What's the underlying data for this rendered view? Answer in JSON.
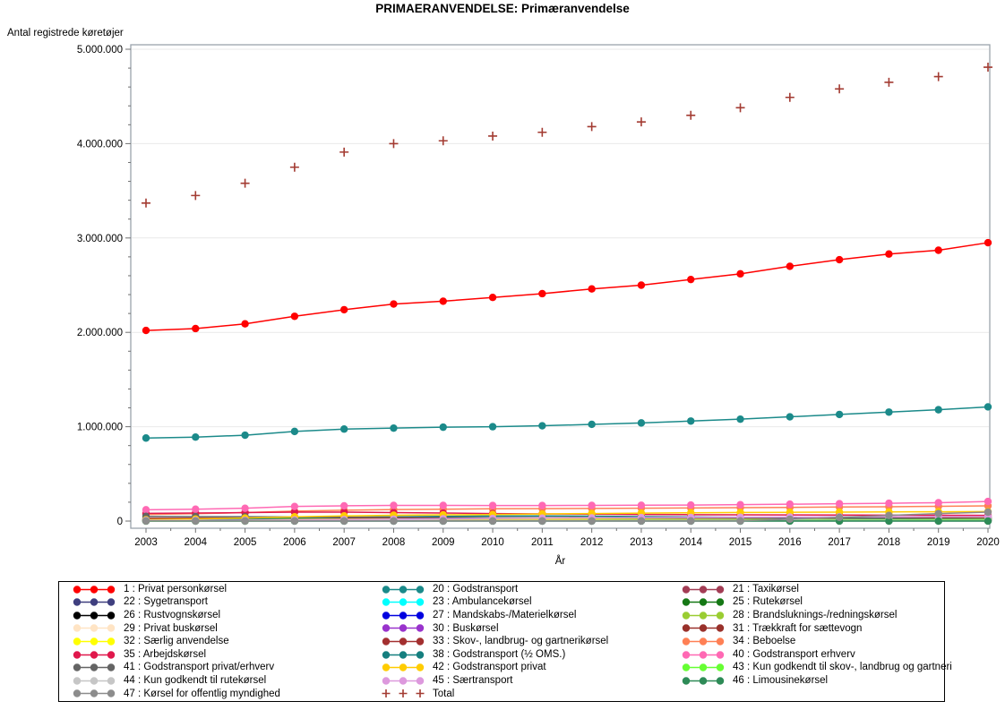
{
  "window": {
    "background": "#ffffff"
  },
  "title": "PRIMAERANVENDELSE: Primæranvendelse",
  "y_axis_label": "Antal registrede køretøjer",
  "x_axis_label": "År",
  "colors": {
    "frame": "#9aa3ac",
    "gridline": "#e9e9e9",
    "tick": "#707070",
    "legend_border": "#000000"
  },
  "chart_data": {
    "type": "line",
    "title": "PRIMAERANVENDELSE: Primæranvendelse",
    "xlabel": "År",
    "ylabel": "Antal registrede køretøjer",
    "grid": true,
    "legend_position": "bottom",
    "ylim": [
      0,
      5000000
    ],
    "x": [
      2003,
      2004,
      2005,
      2006,
      2007,
      2008,
      2009,
      2010,
      2011,
      2012,
      2013,
      2014,
      2015,
      2016,
      2017,
      2018,
      2019,
      2020
    ],
    "x_tick_labels": [
      "2003",
      "2004",
      "2005",
      "2006",
      "2007",
      "2008",
      "2009",
      "2010",
      "2011",
      "2012",
      "2013",
      "2014",
      "2015",
      "2016",
      "2017",
      "2018",
      "2019",
      "2020"
    ],
    "y_ticks": {
      "values": [
        0,
        1000000,
        2000000,
        3000000,
        4000000,
        5000000
      ],
      "labels": [
        "0",
        "1.000.000",
        "2.000.000",
        "3.000.000",
        "4.000.000",
        "5.000.000"
      ]
    },
    "series": [
      {
        "id": "1",
        "label": "1 : Privat personkørsel",
        "color": "#ff0000",
        "marker": "dot",
        "values": [
          2020000,
          2040000,
          2090000,
          2170000,
          2240000,
          2300000,
          2330000,
          2370000,
          2410000,
          2460000,
          2500000,
          2560000,
          2620000,
          2700000,
          2770000,
          2830000,
          2870000,
          2950000
        ]
      },
      {
        "id": "20",
        "label": "20 : Godstransport",
        "color": "#1b8a8a",
        "marker": "dot",
        "values": [
          880000,
          890000,
          910000,
          950000,
          975000,
          985000,
          995000,
          1000000,
          1010000,
          1025000,
          1040000,
          1060000,
          1080000,
          1105000,
          1130000,
          1155000,
          1180000,
          1210000
        ]
      },
      {
        "id": "21",
        "label": "21 : Taxikørsel",
        "color": "#a33d55",
        "marker": "dot",
        "values": [
          7000,
          7000,
          7000,
          7000,
          7000,
          7000,
          6500,
          6500,
          6500,
          6500,
          6000,
          6000,
          6000,
          6000,
          6500,
          6500,
          6000,
          5500
        ]
      },
      {
        "id": "22",
        "label": "22 : Sygetransport",
        "color": "#3f3f7f",
        "marker": "dot",
        "values": [
          2500,
          2500,
          2500,
          2500,
          2500,
          2500,
          2500,
          2500,
          2500,
          2500,
          2500,
          2500,
          2500,
          2500,
          2500,
          2500,
          2500,
          2500
        ]
      },
      {
        "id": "23",
        "label": "23 : Ambulancekørsel",
        "color": "#00ffff",
        "marker": "dot",
        "values": [
          900,
          900,
          900,
          900,
          900,
          950,
          950,
          950,
          950,
          950,
          1000,
          1000,
          1000,
          1000,
          1050,
          1050,
          1100,
          1100
        ]
      },
      {
        "id": "25",
        "label": "25 : Rutekørsel",
        "color": "#157815",
        "marker": "dot",
        "values": [
          4500,
          4500,
          4400,
          4400,
          4300,
          4300,
          4200,
          4200,
          4100,
          4100,
          4000,
          4000,
          3900,
          3900,
          3800,
          3800,
          3700,
          3700
        ]
      },
      {
        "id": "26",
        "label": "26 : Rustvognskørsel",
        "color": "#000000",
        "marker": "dot",
        "values": [
          900,
          900,
          900,
          900,
          900,
          900,
          900,
          900,
          900,
          900,
          900,
          900,
          900,
          900,
          900,
          900,
          900,
          900
        ]
      },
      {
        "id": "27",
        "label": "27 : Mandskabs-/Materielkørsel",
        "color": "#0000e0",
        "marker": "dot",
        "values": [
          14000,
          15000,
          16000,
          18000,
          20000,
          22000,
          23000,
          24000,
          25000,
          26000,
          27000,
          28000,
          29000,
          30000,
          31000,
          32000,
          33000,
          34000
        ]
      },
      {
        "id": "28",
        "label": "28 : Brandsluknings-/redningskørsel",
        "color": "#9acd32",
        "marker": "dot",
        "values": [
          3000,
          3000,
          3000,
          3100,
          3100,
          3100,
          3200,
          3200,
          3200,
          3300,
          3300,
          3300,
          3400,
          3400,
          3400,
          3500,
          3500,
          3500
        ]
      },
      {
        "id": "29",
        "label": "29 : Privat buskørsel",
        "color": "#ffe4c4",
        "marker": "dot",
        "values": [
          1800,
          1800,
          1800,
          1800,
          1800,
          1800,
          1700,
          1700,
          1700,
          1700,
          1600,
          1600,
          1600,
          1600,
          1500,
          1500,
          1500,
          1500
        ]
      },
      {
        "id": "30",
        "label": "30 : Buskørsel",
        "color": "#9933cc",
        "marker": "dot",
        "values": [
          9500,
          9500,
          9600,
          9700,
          9800,
          9800,
          9700,
          9600,
          9500,
          9400,
          9300,
          9200,
          9100,
          9000,
          9000,
          8900,
          8900,
          8800
        ]
      },
      {
        "id": "31",
        "label": "31 : Trækkraft for sættevogn",
        "color": "#99312b",
        "marker": "dot",
        "values": [
          11000,
          11500,
          12000,
          13000,
          14000,
          14000,
          13000,
          12000,
          11500,
          11500,
          11500,
          12000,
          12500,
          13000,
          13500,
          14000,
          14000,
          14500
        ]
      },
      {
        "id": "32",
        "label": "32 : Særlig anvendelse",
        "color": "#ffff00",
        "marker": "dot",
        "values": [
          12000,
          14000,
          16000,
          18000,
          20000,
          21000,
          22000,
          22000,
          23000,
          23000,
          24000,
          24000,
          25000,
          26000,
          27000,
          28000,
          29000,
          30000
        ]
      },
      {
        "id": "33",
        "label": "33 : Skov-, landbrug- og gartnerikørsel",
        "color": "#a33030",
        "marker": "dot",
        "values": [
          30000,
          31000,
          32000,
          33000,
          34000,
          35000,
          35000,
          36000,
          36000,
          37000,
          37000,
          38000,
          38000,
          39000,
          40000,
          41000,
          42000,
          43000
        ]
      },
      {
        "id": "34",
        "label": "34 : Beboelse",
        "color": "#ff8055",
        "marker": "dot",
        "values": [
          70000,
          78000,
          90000,
          105000,
          115000,
          122000,
          126000,
          130000,
          132000,
          134000,
          136000,
          139000,
          142000,
          145000,
          149000,
          152000,
          156000,
          161000
        ]
      },
      {
        "id": "35",
        "label": "35 : Arbejdskørsel",
        "color": "#e0184c",
        "marker": "dot",
        "values": [
          82000,
          85000,
          90000,
          95000,
          95000,
          90000,
          85000,
          80000,
          76000,
          73000,
          70000,
          68000,
          66000,
          65000,
          64000,
          63000,
          62000,
          60000
        ]
      },
      {
        "id": "38",
        "label": "38 : Godstransport (½ OMS.)",
        "color": "#157f7f",
        "marker": "dot",
        "values": [
          10000,
          15000,
          22000,
          32000,
          40000,
          45000,
          50000,
          53000,
          54000,
          52000,
          48000,
          44000,
          40000,
          36000,
          32000,
          28000,
          25000,
          22000
        ]
      },
      {
        "id": "40",
        "label": "40 : Godstransport erhverv",
        "color": "#ff69b4",
        "marker": "dot",
        "values": [
          120000,
          126000,
          136000,
          155000,
          162000,
          166000,
          166000,
          165000,
          165000,
          166000,
          168000,
          170000,
          174000,
          179000,
          184000,
          189000,
          195000,
          208000
        ]
      },
      {
        "id": "41",
        "label": "41 : Godstransport privat/erhverv",
        "color": "#646464",
        "marker": "dot",
        "values": [
          50000,
          48000,
          46000,
          44000,
          42000,
          40000,
          38000,
          36000,
          34000,
          33000,
          32000,
          31000,
          30000,
          29000,
          28000,
          27000,
          26000,
          25000
        ]
      },
      {
        "id": "42",
        "label": "42 : Godstransport privat",
        "color": "#ffcc00",
        "marker": "dot",
        "values": [
          15000,
          22000,
          32000,
          45000,
          55000,
          62000,
          66000,
          70000,
          75000,
          80000,
          84000,
          88000,
          91000,
          93000,
          95000,
          97000,
          99000,
          101000
        ]
      },
      {
        "id": "43",
        "label": "43 : Kun godkendt til skov-, landbrug og gartneri",
        "color": "#66ff33",
        "marker": "dot",
        "values": [
          500,
          800,
          1200,
          2000,
          3000,
          4000,
          5000,
          6000,
          7000,
          8000,
          9000,
          10000,
          11000,
          12000,
          13000,
          14000,
          15000,
          16000
        ]
      },
      {
        "id": "44",
        "label": "44 : Kun godkendt til rutekørsel",
        "color": "#c6c6c6",
        "marker": "dot",
        "values": [
          8000,
          8000,
          7800,
          7800,
          7600,
          7600,
          7400,
          7400,
          7200,
          7200,
          7000,
          7000,
          6800,
          6800,
          6600,
          6600,
          6400,
          6400
        ]
      },
      {
        "id": "45",
        "label": "45 : Særtransport",
        "color": "#dd99dd",
        "marker": "dot",
        "values": [
          5000,
          6000,
          8000,
          12000,
          16000,
          20000,
          24000,
          28000,
          31000,
          34000,
          37000,
          39000,
          41000,
          43000,
          45000,
          46000,
          47000,
          48000
        ]
      },
      {
        "id": "46",
        "label": "46 : Limousinekørsel",
        "color": "#2e8b57",
        "marker": "dot",
        "values": [
          700,
          700,
          700,
          700,
          750,
          750,
          750,
          800,
          800,
          800,
          850,
          850,
          850,
          900,
          900,
          900,
          950,
          950
        ]
      },
      {
        "id": "47",
        "label": "47 : Kørsel for offentlig myndighed",
        "color": "#8c8c8c",
        "marker": "dot",
        "values": [
          1000,
          1000,
          1000,
          1000,
          1000,
          1000,
          1000,
          1000,
          1000,
          1000,
          1000,
          1000,
          2000,
          20000,
          40000,
          60000,
          80000,
          95000
        ]
      },
      {
        "id": "total",
        "label": "Total",
        "color": "#a33b32",
        "marker": "plus",
        "values": [
          3370000,
          3450000,
          3580000,
          3750000,
          3910000,
          4000000,
          4030000,
          4080000,
          4120000,
          4180000,
          4230000,
          4300000,
          4380000,
          4490000,
          4580000,
          4650000,
          4710000,
          4810000
        ]
      }
    ]
  }
}
